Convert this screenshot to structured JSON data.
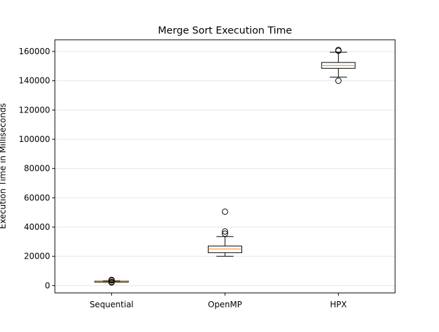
{
  "chart_data": {
    "type": "box",
    "title": "Merge Sort Execution Time",
    "xlabel": "",
    "ylabel": "Execution Time in Milliseconds",
    "ylim": [
      -5000,
      168000
    ],
    "yticks": [
      0,
      20000,
      40000,
      60000,
      80000,
      100000,
      120000,
      140000,
      160000
    ],
    "grid": "horizontal",
    "colors": {
      "box": "#000000",
      "median": "#ff7f0e",
      "grid": "#e6e6e6"
    },
    "categories": [
      "Sequential",
      "OpenMP",
      "HPX"
    ],
    "boxes": [
      {
        "category": "Sequential",
        "whisker_low": 2600,
        "q1": 2800,
        "median": 2950,
        "q3": 3100,
        "whisker_high": 3300,
        "outliers": [
          2100,
          2300,
          2500,
          3500,
          3700,
          3900
        ]
      },
      {
        "category": "OpenMP",
        "whisker_low": 20000,
        "q1": 22500,
        "median": 25000,
        "q3": 27000,
        "whisker_high": 33500,
        "outliers": [
          35500,
          37000,
          50500
        ]
      },
      {
        "category": "HPX",
        "whisker_low": 142500,
        "q1": 148500,
        "median": 150500,
        "q3": 152500,
        "whisker_high": 159500,
        "outliers": [
          140000,
          160500,
          161000
        ]
      }
    ]
  }
}
